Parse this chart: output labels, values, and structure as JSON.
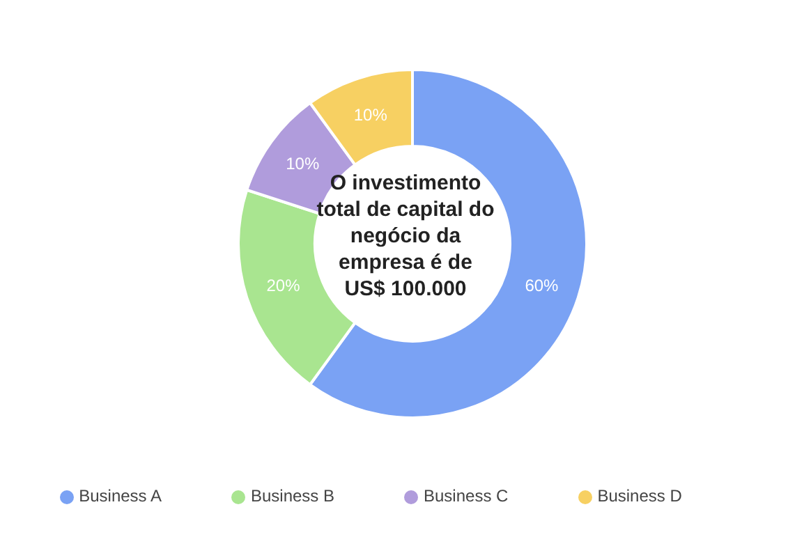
{
  "chart_data": {
    "type": "donut",
    "categories": [
      "Business A",
      "Business B",
      "Business C",
      "Business D"
    ],
    "values": [
      60,
      20,
      10,
      10
    ],
    "colors": [
      "#7aa2f4",
      "#a9e590",
      "#b09cdc",
      "#f7d062"
    ],
    "value_labels": [
      "60%",
      "20%",
      "10%",
      "10%"
    ],
    "annotations": [
      "O investimento total de capital do negócio da empresa é de US$ 100.000"
    ],
    "legend": "bottom"
  }
}
